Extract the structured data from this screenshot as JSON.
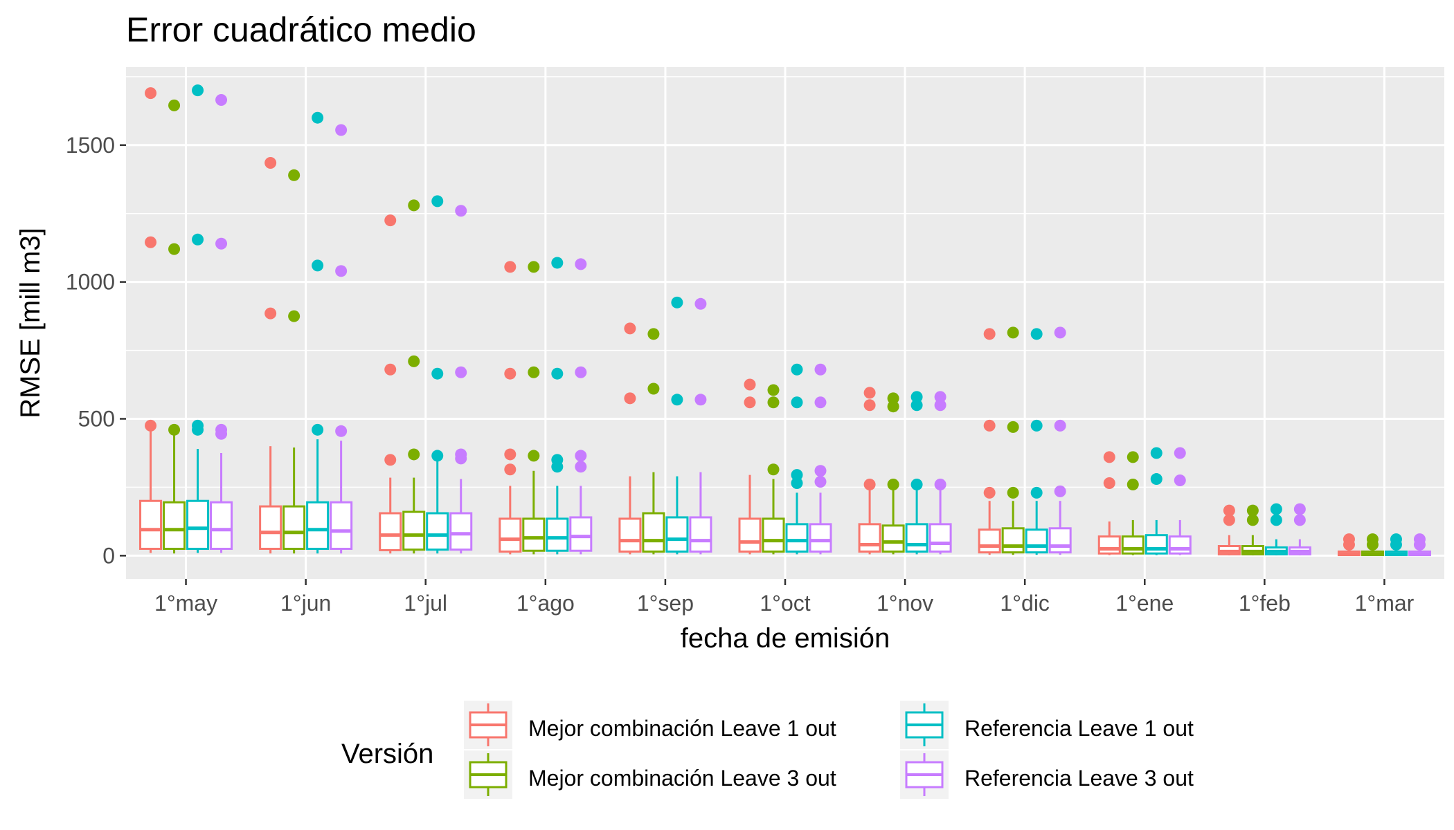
{
  "chart_data": {
    "type": "boxplot",
    "title": "Error cuadrático medio",
    "xlabel": "fecha de emisión",
    "ylabel": "RMSE [mill m3]",
    "ylim": [
      -85,
      1785
    ],
    "yticks": [
      0,
      500,
      1000,
      1500
    ],
    "grid": true,
    "legend_title": "Versión",
    "legend_position": "bottom",
    "categories": [
      "1°may",
      "1°jun",
      "1°jul",
      "1°ago",
      "1°sep",
      "1°oct",
      "1°nov",
      "1°dic",
      "1°ene",
      "1°feb",
      "1°mar"
    ],
    "series": [
      {
        "name": "Mejor combinación Leave 1 out",
        "color": "#F8766D",
        "boxes": [
          {
            "min": 10,
            "q1": 25,
            "median": 95,
            "q3": 200,
            "max": 475,
            "outliers": [
              1690,
              1145,
              475
            ]
          },
          {
            "min": 8,
            "q1": 25,
            "median": 85,
            "q3": 180,
            "max": 400,
            "outliers": [
              1435,
              885
            ]
          },
          {
            "min": 8,
            "q1": 20,
            "median": 75,
            "q3": 155,
            "max": 285,
            "outliers": [
              1225,
              680,
              350
            ]
          },
          {
            "min": 5,
            "q1": 15,
            "median": 60,
            "q3": 135,
            "max": 255,
            "outliers": [
              1055,
              665,
              370,
              315
            ]
          },
          {
            "min": 5,
            "q1": 15,
            "median": 55,
            "q3": 135,
            "max": 290,
            "outliers": [
              830,
              575
            ]
          },
          {
            "min": 5,
            "q1": 15,
            "median": 50,
            "q3": 135,
            "max": 295,
            "outliers": [
              625,
              560
            ]
          },
          {
            "min": 5,
            "q1": 15,
            "median": 40,
            "q3": 115,
            "max": 245,
            "outliers": [
              595,
              550,
              260
            ]
          },
          {
            "min": 3,
            "q1": 12,
            "median": 35,
            "q3": 95,
            "max": 200,
            "outliers": [
              810,
              475,
              230
            ]
          },
          {
            "min": 2,
            "q1": 8,
            "median": 25,
            "q3": 70,
            "max": 125,
            "outliers": [
              360,
              265
            ]
          },
          {
            "min": 1,
            "q1": 5,
            "median": 15,
            "q3": 35,
            "max": 75,
            "outliers": [
              165,
              130
            ]
          },
          {
            "min": 0,
            "q1": 2,
            "median": 5,
            "q3": 15,
            "max": 35,
            "outliers": [
              60,
              40
            ]
          }
        ]
      },
      {
        "name": "Mejor combinación Leave 3 out",
        "color": "#7CAE00",
        "boxes": [
          {
            "min": 8,
            "q1": 25,
            "median": 95,
            "q3": 195,
            "max": 460,
            "outliers": [
              1645,
              1120,
              460
            ]
          },
          {
            "min": 8,
            "q1": 25,
            "median": 85,
            "q3": 180,
            "max": 395,
            "outliers": [
              1390,
              875
            ]
          },
          {
            "min": 8,
            "q1": 22,
            "median": 75,
            "q3": 160,
            "max": 285,
            "outliers": [
              1280,
              710,
              370
            ]
          },
          {
            "min": 5,
            "q1": 18,
            "median": 65,
            "q3": 135,
            "max": 310,
            "outliers": [
              1055,
              670,
              365
            ]
          },
          {
            "min": 5,
            "q1": 15,
            "median": 55,
            "q3": 155,
            "max": 305,
            "outliers": [
              810,
              610
            ]
          },
          {
            "min": 5,
            "q1": 15,
            "median": 55,
            "q3": 135,
            "max": 280,
            "outliers": [
              605,
              560,
              315
            ]
          },
          {
            "min": 5,
            "q1": 15,
            "median": 50,
            "q3": 110,
            "max": 245,
            "outliers": [
              575,
              545,
              260
            ]
          },
          {
            "min": 3,
            "q1": 12,
            "median": 35,
            "q3": 100,
            "max": 200,
            "outliers": [
              815,
              470,
              230
            ]
          },
          {
            "min": 2,
            "q1": 8,
            "median": 25,
            "q3": 70,
            "max": 130,
            "outliers": [
              360,
              260
            ]
          },
          {
            "min": 1,
            "q1": 5,
            "median": 15,
            "q3": 35,
            "max": 75,
            "outliers": [
              165,
              130
            ]
          },
          {
            "min": 0,
            "q1": 2,
            "median": 5,
            "q3": 15,
            "max": 35,
            "outliers": [
              60,
              40
            ]
          }
        ]
      },
      {
        "name": "Referencia Leave 1 out",
        "color": "#00BFC4",
        "boxes": [
          {
            "min": 10,
            "q1": 25,
            "median": 100,
            "q3": 200,
            "max": 390,
            "outliers": [
              1700,
              1155,
              475,
              460
            ]
          },
          {
            "min": 8,
            "q1": 25,
            "median": 95,
            "q3": 195,
            "max": 425,
            "outliers": [
              1600,
              1060,
              460
            ]
          },
          {
            "min": 8,
            "q1": 22,
            "median": 75,
            "q3": 155,
            "max": 365,
            "outliers": [
              1295,
              665,
              365
            ]
          },
          {
            "min": 5,
            "q1": 18,
            "median": 65,
            "q3": 135,
            "max": 255,
            "outliers": [
              1070,
              665,
              350,
              325
            ]
          },
          {
            "min": 5,
            "q1": 15,
            "median": 60,
            "q3": 140,
            "max": 290,
            "outliers": [
              925,
              570
            ]
          },
          {
            "min": 5,
            "q1": 15,
            "median": 55,
            "q3": 115,
            "max": 230,
            "outliers": [
              680,
              560,
              295,
              265
            ]
          },
          {
            "min": 5,
            "q1": 15,
            "median": 40,
            "q3": 115,
            "max": 245,
            "outliers": [
              580,
              550,
              260
            ]
          },
          {
            "min": 3,
            "q1": 12,
            "median": 35,
            "q3": 95,
            "max": 200,
            "outliers": [
              810,
              475,
              230
            ]
          },
          {
            "min": 2,
            "q1": 8,
            "median": 25,
            "q3": 75,
            "max": 130,
            "outliers": [
              375,
              280
            ]
          },
          {
            "min": 1,
            "q1": 5,
            "median": 15,
            "q3": 30,
            "max": 60,
            "outliers": [
              170,
              130
            ]
          },
          {
            "min": 0,
            "q1": 2,
            "median": 5,
            "q3": 15,
            "max": 35,
            "outliers": [
              60,
              40
            ]
          }
        ]
      },
      {
        "name": "Referencia Leave 3 out",
        "color": "#C77CFF",
        "boxes": [
          {
            "min": 10,
            "q1": 25,
            "median": 95,
            "q3": 195,
            "max": 375,
            "outliers": [
              1665,
              1140,
              460,
              445
            ]
          },
          {
            "min": 8,
            "q1": 25,
            "median": 90,
            "q3": 195,
            "max": 420,
            "outliers": [
              1555,
              1040,
              455
            ]
          },
          {
            "min": 8,
            "q1": 22,
            "median": 80,
            "q3": 155,
            "max": 280,
            "outliers": [
              1260,
              670,
              370,
              355
            ]
          },
          {
            "min": 5,
            "q1": 18,
            "median": 70,
            "q3": 140,
            "max": 255,
            "outliers": [
              1065,
              670,
              365,
              325
            ]
          },
          {
            "min": 5,
            "q1": 15,
            "median": 55,
            "q3": 140,
            "max": 305,
            "outliers": [
              920,
              570
            ]
          },
          {
            "min": 5,
            "q1": 15,
            "median": 55,
            "q3": 115,
            "max": 230,
            "outliers": [
              680,
              560,
              310,
              270
            ]
          },
          {
            "min": 5,
            "q1": 15,
            "median": 45,
            "q3": 115,
            "max": 240,
            "outliers": [
              580,
              550,
              260
            ]
          },
          {
            "min": 3,
            "q1": 12,
            "median": 35,
            "q3": 100,
            "max": 200,
            "outliers": [
              815,
              475,
              235
            ]
          },
          {
            "min": 2,
            "q1": 8,
            "median": 25,
            "q3": 70,
            "max": 130,
            "outliers": [
              375,
              275
            ]
          },
          {
            "min": 1,
            "q1": 5,
            "median": 15,
            "q3": 30,
            "max": 60,
            "outliers": [
              170,
              130
            ]
          },
          {
            "min": 0,
            "q1": 2,
            "median": 5,
            "q3": 15,
            "max": 35,
            "outliers": [
              60,
              40
            ]
          }
        ]
      }
    ]
  }
}
